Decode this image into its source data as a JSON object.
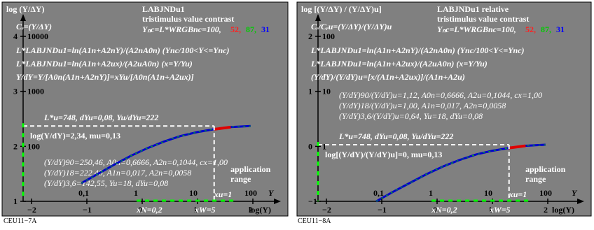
{
  "charts": [
    {
      "title": "LABJNDu1",
      "subtitle": "tristimulus value contrast",
      "y_axis_title": "log (Y/ΔY)",
      "c_label": "Cᵣ=(Y/ΔY)",
      "ync_label": "Yₙc=L*WRGBnc=100,",
      "rgb_values": [
        "52,",
        "87,",
        "31"
      ],
      "equations": [
        "L*LABJNDu1=ln(A1n+A2nY)/(A2nA0n)   (Ync/100<Y<=Ync)",
        "L*LABJNDu1=ln(A1n+A2ux)/(A2uA0n)   (x=Y/Yu)",
        "Y/dY=Y/[A0n(A1n+A2nY)]=xYu/[A0n(A1n+A2ux)]"
      ],
      "point_label": "L*u=748, dYu=0,08, Yu/dYu=222",
      "log_label": "log(Y/dY)=2,34, mu=0,13",
      "info_lines": [
        "(Y/dY)90=250,46, A0n=0,6666, A2n=0,1044, cx=1,00",
        "(Y/dY)18=222,40, A1n=0,017, A2n=0,0058",
        "(Y/dY)3,6=142,55, Yu=18, dYu=0,08"
      ],
      "app_range": [
        "application",
        "range"
      ],
      "y_ticks": [
        {
          "major": "4",
          "minor": "10000"
        },
        {
          "major": "3",
          "minor": "1000"
        },
        {
          "major": "2",
          "minor": "100"
        },
        {
          "major": "1",
          "minor": ""
        }
      ],
      "x_ticks": [
        "−2",
        "−1",
        "0",
        "1",
        "2"
      ],
      "x_minor": [
        "0,1",
        "1",
        "10",
        "100"
      ],
      "xu_label": "xu=1",
      "xn_label": "xN=0,2",
      "xw_label": "xW=5",
      "x_title": "log(Y)",
      "y_small": "Y",
      "footer": "CEU11−7A"
    },
    {
      "title": "LABJNDu1 relative",
      "subtitle": "tristimulus value contrast",
      "y_axis_title": "log [(Y/ΔY) / (Y/ΔY)u]",
      "c_label": "Cᵣ/Cᵣu=(Y/ΔY)/(Y/ΔY)u",
      "ync_label": "Yₙc=L*WRGBnc=100,",
      "rgb_values": [
        "52,",
        "87,",
        "31"
      ],
      "equations": [
        "L*LABJNDu1=ln(A1n+A2nY)/(A2nA0n)   (Ync/100<Y<=Ync)",
        "L*LABJNDu1=ln(A1n+A2ux)/(A2uA0n)   (x=Y/Yu)",
        "(Y/dY)/(Y/dY)u=[x/(A1n+A2ux)]/(A1n+A2u)"
      ],
      "point_label": "L*u=748, dYu=0,08, Yu/dYu=222",
      "log_label": "log[(Y/dY)/(Y/dY)u]=0, mu=0,13",
      "info_lines": [
        "(Y/dY)90/(Y/dY)u=1,12, A0n=0,6666, A2u=0,1044, cx=1,00",
        "(Y/dY)18/(Y/dY)u=1,00, A1n=0,017, A2n=0,0058",
        "(Y/dY)3,6/(Y/dY)u=0,64, Yu=18, dYu=0,08"
      ],
      "app_range": [
        "application",
        "range"
      ],
      "y_ticks": [
        {
          "major": "2",
          "minor": "100"
        },
        {
          "major": "1",
          "minor": "10"
        },
        {
          "major": "0",
          "minor": "1"
        },
        {
          "major": "−1",
          "minor": ""
        }
      ],
      "x_ticks": [
        "−2",
        "−1",
        "0",
        "1",
        "2"
      ],
      "x_minor": [
        "0,1",
        "1",
        "10",
        "100"
      ],
      "xu_label": "xu=1",
      "xn_label": "xN=0,2",
      "xw_label": "xW=5",
      "x_title": "log(Y)",
      "y_small": "Y",
      "footer": "CEU11−8A"
    }
  ],
  "chart_data": [
    {
      "type": "line",
      "title": "LABJNDu1",
      "xlabel": "log(Y)",
      "ylabel": "log (Y/ΔY)",
      "xlim": [
        -2,
        2
      ],
      "ylim": [
        1,
        4
      ],
      "series": [
        {
          "x": [
            -1.1,
            -0.8,
            -0.5,
            -0.2,
            0.1,
            0.4,
            0.7,
            1.0,
            1.3,
            1.6,
            1.96
          ],
          "y": [
            1.33,
            1.5,
            1.67,
            1.83,
            1.97,
            2.09,
            2.19,
            2.26,
            2.31,
            2.35,
            2.37
          ]
        }
      ],
      "colors": {
        "background": "#808080",
        "curve_main": "#0000cc",
        "curve_green": "#00cc00",
        "curve_red": "#e00000"
      }
    },
    {
      "type": "line",
      "title": "LABJNDu1 relative",
      "xlabel": "log(Y)",
      "ylabel": "log [(Y/ΔY) / (Y/ΔY)u]",
      "xlim": [
        -2,
        2
      ],
      "ylim": [
        -1,
        2
      ],
      "series": [
        {
          "x": [
            -1.1,
            -0.8,
            -0.5,
            -0.2,
            0.1,
            0.4,
            0.7,
            1.0,
            1.3,
            1.6,
            1.96
          ],
          "y": [
            -1.0,
            -0.83,
            -0.67,
            -0.51,
            -0.37,
            -0.25,
            -0.15,
            -0.08,
            -0.03,
            0.01,
            0.03
          ]
        }
      ],
      "colors": {
        "background": "#808080",
        "curve_main": "#0000cc",
        "curve_green": "#00cc00",
        "curve_red": "#e00000"
      }
    }
  ]
}
